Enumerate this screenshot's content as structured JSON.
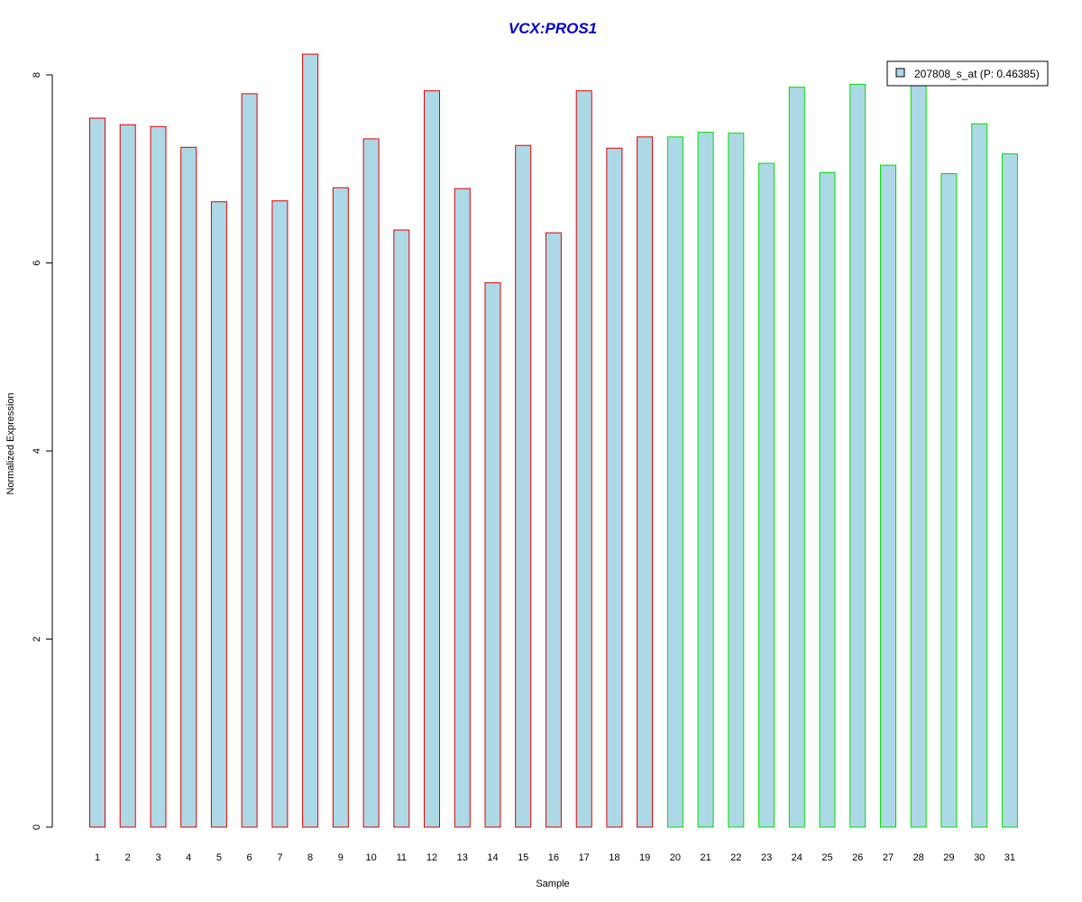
{
  "chart_data": {
    "type": "bar",
    "title": "VCX:PROS1",
    "xlabel": "Sample",
    "ylabel": "Normalized Expression",
    "ylim": [
      0,
      8.2
    ],
    "yticks": [
      0,
      2,
      4,
      6,
      8
    ],
    "categories": [
      "1",
      "2",
      "3",
      "4",
      "5",
      "6",
      "7",
      "8",
      "9",
      "10",
      "11",
      "12",
      "13",
      "14",
      "15",
      "16",
      "17",
      "18",
      "19",
      "20",
      "21",
      "22",
      "23",
      "24",
      "25",
      "26",
      "27",
      "28",
      "29",
      "30",
      "31"
    ],
    "series": [
      {
        "name": "207808_s_at (P: 0.46385)",
        "values": [
          7.54,
          7.47,
          7.45,
          7.23,
          6.65,
          7.8,
          6.66,
          8.22,
          6.8,
          7.32,
          6.35,
          7.83,
          6.79,
          5.79,
          7.25,
          6.32,
          7.83,
          7.22,
          7.34,
          7.34,
          7.39,
          7.38,
          7.06,
          7.87,
          6.96,
          7.9,
          7.04,
          7.95,
          6.95,
          7.48,
          7.16
        ],
        "group_colors": [
          "#e00000",
          "#e00000",
          "#e00000",
          "#e00000",
          "#e00000",
          "#e00000",
          "#e00000",
          "#e00000",
          "#e00000",
          "#e00000",
          "#e00000",
          "#e00000",
          "#e00000",
          "#e00000",
          "#e00000",
          "#e00000",
          "#e00000",
          "#e00000",
          "#e00000",
          "#00e000",
          "#00e000",
          "#00e000",
          "#00e000",
          "#00e000",
          "#00e000",
          "#00e000",
          "#00e000",
          "#00e000",
          "#00e000",
          "#00e000",
          "#00e000"
        ]
      }
    ],
    "bar_fill": "#add8e6",
    "title_color": "#0000cd",
    "grid": false,
    "legend_position": "top-right"
  }
}
